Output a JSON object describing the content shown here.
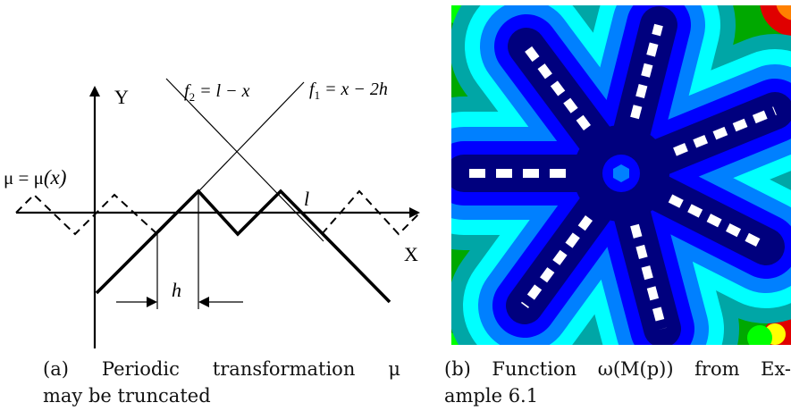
{
  "figure_a": {
    "label_y": "Y",
    "label_x": "X",
    "label_mu_lhs": "μ = μ",
    "label_mu_arg": "(x)",
    "label_f2": "f",
    "label_f2_sub": "2",
    "label_f2_rhs": " = l − x",
    "label_f1": "f",
    "label_f1_sub": "1",
    "label_f1_rhs": " = x − 2h",
    "label_l": "l",
    "label_h": "h"
  },
  "figure_b": {
    "colors": {
      "navy": "#00007e",
      "blue": "#0000ff",
      "azure": "#0080ff",
      "cyan": "#00ffff",
      "teal": "#00a6a6",
      "green": "#00a800",
      "lime": "#00ff00",
      "yellow": "#ffff00",
      "orange": "#ff8000",
      "red": "#e00000",
      "white": "#ffffff"
    }
  },
  "captions": {
    "a_line1": "(a) Periodic transformation μ",
    "a_line2": "may be truncated",
    "b_line1": "(b) Function ω(M(p)) from Ex-",
    "b_line2": "ample 6.1"
  }
}
